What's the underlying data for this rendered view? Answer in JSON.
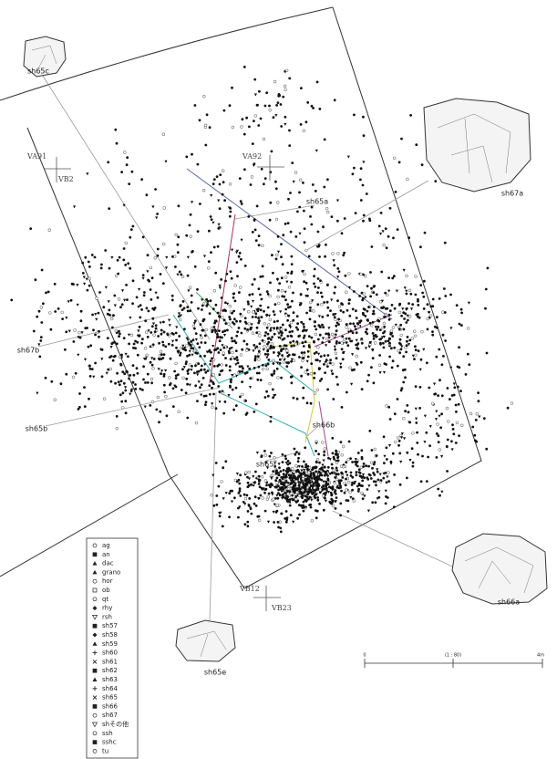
{
  "labels": [
    "sh65c",
    "sh67a",
    "sh65a",
    "sh67b",
    "sh65b",
    "sh66b",
    "sh65f",
    "sh66a",
    "sh65e"
  ],
  "grid_markers": [
    "VA91",
    "VB2",
    "VA92",
    "VB12",
    "VB23"
  ],
  "legend": {
    "items": [
      "ag",
      "an",
      "dac",
      "grano",
      "hor",
      "ob",
      "qt",
      "rhy",
      "rsh",
      "sh57",
      "sh58",
      "sh59",
      "sh60",
      "sh61",
      "sh62",
      "sh63",
      "sh64",
      "sh65",
      "sh66",
      "sh67",
      "shその他",
      "ssh",
      "sshc",
      "tu"
    ]
  },
  "scale": {
    "start": "0",
    "ratio": "(1 : 80)",
    "end": "4m"
  }
}
